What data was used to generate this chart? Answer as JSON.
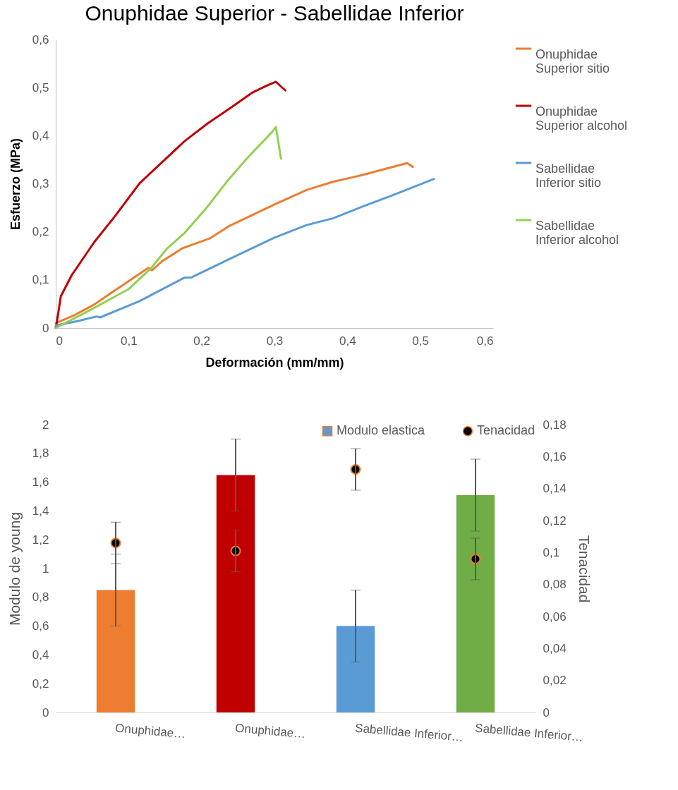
{
  "chart_data": [
    {
      "type": "line",
      "title": "Onuphidae Superior - Sabellidae Inferior",
      "xlabel": "Deformación (mm/mm)",
      "ylabel": "Esfuerzo (MPa)",
      "legend": "right",
      "xlim": [
        0,
        0.6
      ],
      "xticks": [
        0,
        {
          "value": 0.1,
          "label": "0,1"
        },
        {
          "value": 0.2,
          "label": "0,2"
        },
        {
          "value": 0.3,
          "label": "0,3"
        },
        {
          "value": 0.4,
          "label": "0,4"
        },
        {
          "value": 0.5,
          "label": "0,5"
        },
        {
          "value": 0.6,
          "label": "0,6"
        }
      ],
      "ylim": [
        0,
        0.6
      ],
      "yticks": [
        0,
        {
          "value": 0.1,
          "label": "0,1"
        },
        {
          "value": 0.2,
          "label": "0,2"
        },
        {
          "value": 0.3,
          "label": "0,3"
        },
        {
          "value": 0.4,
          "label": "0,4"
        },
        {
          "value": 0.5,
          "label": "0,5"
        },
        {
          "value": 0.6,
          "label": "0,6"
        }
      ],
      "series": [
        {
          "name": "Onuphidae Superior sitio",
          "color": "#ed7d31",
          "x": [
            0,
            0.026,
            0.053,
            0.084,
            0.127,
            0.132,
            0.146,
            0.174,
            0.211,
            0.239,
            0.3,
            0.344,
            0.38,
            0.42,
            0.45,
            0.482,
            0.49
          ],
          "values": [
            0.01,
            0.027,
            0.049,
            0.081,
            0.125,
            0.12,
            0.139,
            0.166,
            0.186,
            0.213,
            0.257,
            0.287,
            0.304,
            0.318,
            0.33,
            0.343,
            0.335
          ]
        },
        {
          "name": "Onuphidae Superior alcohol",
          "color": "#c00000",
          "x": [
            0,
            0.001,
            0.007,
            0.022,
            0.053,
            0.081,
            0.115,
            0.146,
            0.177,
            0.208,
            0.239,
            0.269,
            0.288,
            0.302,
            0.315
          ],
          "values": [
            0,
            0.007,
            0.066,
            0.11,
            0.179,
            0.232,
            0.301,
            0.345,
            0.389,
            0.425,
            0.457,
            0.489,
            0.503,
            0.512,
            0.494
          ]
        },
        {
          "name": "Sabellidae Inferior sitio",
          "color": "#5b9bd5",
          "x": [
            0,
            0.032,
            0.056,
            0.061,
            0.115,
            0.177,
            0.186,
            0.239,
            0.3,
            0.344,
            0.38,
            0.42,
            0.46,
            0.519
          ],
          "values": [
            0.005,
            0.015,
            0.024,
            0.022,
            0.056,
            0.105,
            0.105,
            0.144,
            0.188,
            0.214,
            0.228,
            0.252,
            0.275,
            0.31
          ]
        },
        {
          "name": "Sabellidae Inferior alcohol",
          "color": "#92d050",
          "x": [
            0,
            0.053,
            0.1,
            0.131,
            0.152,
            0.177,
            0.208,
            0.235,
            0.263,
            0.297,
            0.302,
            0.309
          ],
          "values": [
            0,
            0.042,
            0.081,
            0.125,
            0.164,
            0.198,
            0.252,
            0.305,
            0.354,
            0.408,
            0.418,
            0.352
          ]
        }
      ]
    },
    {
      "type": "bar",
      "categories": [
        "Onuphidae…",
        "Onuphidae…",
        "Sabellidae Inferior…",
        "Sabellidae Inferior…"
      ],
      "ylabel": "Modulo de young",
      "y2label": "Tenacidad",
      "legend": "top right",
      "ylim": [
        0,
        2
      ],
      "yticks": [
        0,
        {
          "value": 0.2,
          "label": "0,2"
        },
        {
          "value": 0.4,
          "label": "0,4"
        },
        {
          "value": 0.6,
          "label": "0,6"
        },
        {
          "value": 0.8,
          "label": "0,8"
        },
        1,
        {
          "value": 1.2,
          "label": "1,2"
        },
        {
          "value": 1.4,
          "label": "1,4"
        },
        {
          "value": 1.6,
          "label": "1,6"
        },
        {
          "value": 1.8,
          "label": "1,8"
        },
        2
      ],
      "y2lim": [
        0,
        0.18
      ],
      "y2ticks": [
        0,
        {
          "value": 0.02,
          "label": "0,02"
        },
        {
          "value": 0.04,
          "label": "0,04"
        },
        {
          "value": 0.06,
          "label": "0,06"
        },
        {
          "value": 0.08,
          "label": "0,08"
        },
        {
          "value": 0.1,
          "label": "0,1"
        },
        {
          "value": 0.12,
          "label": "0,12"
        },
        {
          "value": 0.14,
          "label": "0,14"
        },
        {
          "value": 0.16,
          "label": "0,16"
        },
        {
          "value": 0.18,
          "label": "0,18"
        }
      ],
      "series": [
        {
          "name": "Modulo elastica",
          "color": "#5b9bd5",
          "colors": [
            "#ed7d31",
            "#c00000",
            "#5b9bd5",
            "#70ad47"
          ],
          "values": [
            0.85,
            1.65,
            0.6,
            1.51
          ],
          "errors": [
            0.25,
            0.25,
            0.25,
            0.25
          ]
        },
        {
          "name": "Tenacidad",
          "type": "scatter",
          "axis": "y2",
          "color": "#000000",
          "values": [
            0.106,
            0.101,
            0.152,
            0.096
          ],
          "errors": [
            0.013,
            0.013,
            0.013,
            0.013
          ]
        }
      ]
    }
  ]
}
